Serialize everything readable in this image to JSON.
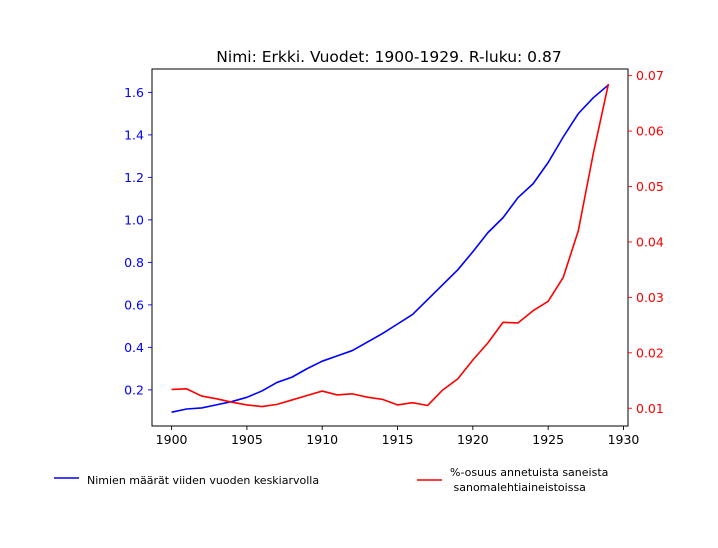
{
  "chart_data": {
    "type": "line",
    "title": "Nimi: Erkki. Vuodet: 1900-1929. R-luku: 0.87",
    "x": [
      1900,
      1901,
      1902,
      1903,
      1904,
      1905,
      1906,
      1907,
      1908,
      1909,
      1910,
      1911,
      1912,
      1913,
      1914,
      1915,
      1916,
      1917,
      1918,
      1919,
      1920,
      1921,
      1922,
      1923,
      1924,
      1925,
      1926,
      1927,
      1928,
      1929
    ],
    "xlim": [
      1898.7,
      1930.3
    ],
    "xticks": [
      1900,
      1905,
      1910,
      1915,
      1920,
      1925,
      1930
    ],
    "y_left": {
      "lim": [
        0.03,
        1.71
      ],
      "ticks": [
        0.2,
        0.4,
        0.6,
        0.8,
        1.0,
        1.2,
        1.4,
        1.6
      ],
      "tick_labels": [
        "0.2",
        "0.4",
        "0.6",
        "0.8",
        "1.0",
        "1.2",
        "1.4",
        "1.6"
      ],
      "color": "#0000ff"
    },
    "y_right": {
      "lim": [
        0.0068,
        0.0712
      ],
      "ticks": [
        0.01,
        0.02,
        0.03,
        0.04,
        0.05,
        0.06,
        0.07
      ],
      "tick_labels": [
        "0.01",
        "0.02",
        "0.03",
        "0.04",
        "0.05",
        "0.06",
        "0.07"
      ],
      "color": "#ff0000"
    },
    "series": [
      {
        "name": "Nimien määrät viiden vuoden keskiarvolla",
        "axis": "left",
        "color": "#0000ff",
        "values": [
          0.095,
          0.11,
          0.115,
          0.13,
          0.145,
          0.165,
          0.195,
          0.235,
          0.26,
          0.3,
          0.335,
          0.36,
          0.385,
          0.425,
          0.465,
          0.51,
          0.555,
          0.625,
          0.695,
          0.765,
          0.85,
          0.94,
          1.01,
          1.105,
          1.17,
          1.27,
          1.39,
          1.5,
          1.575,
          1.635
        ]
      },
      {
        "name": "%-osuus annetuista saneista\n sanomalehtiaineistoissa",
        "axis": "right",
        "color": "#ff0000",
        "values": [
          0.0134,
          0.0135,
          0.0122,
          0.0117,
          0.0111,
          0.0106,
          0.0103,
          0.0107,
          0.0115,
          0.0123,
          0.0131,
          0.0124,
          0.0126,
          0.012,
          0.0116,
          0.0106,
          0.011,
          0.0105,
          0.0133,
          0.0153,
          0.0187,
          0.0218,
          0.0255,
          0.0254,
          0.0276,
          0.0293,
          0.0336,
          0.042,
          0.056,
          0.0685
        ]
      }
    ],
    "legend_placement": "bottom"
  }
}
